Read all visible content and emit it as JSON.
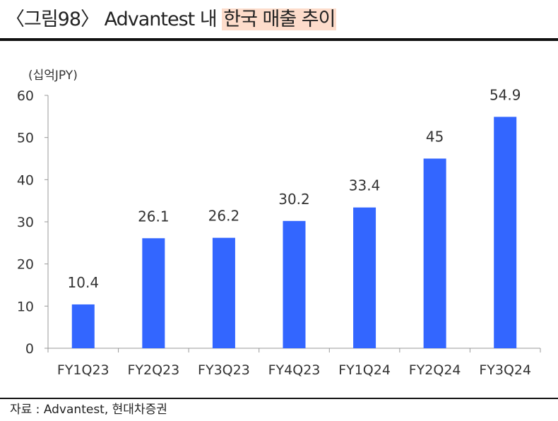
{
  "title": {
    "prefix": "〈그림98〉 Advantest 내 ",
    "highlight": "한국 매출 추이",
    "highlight_color": "#fddccb"
  },
  "source": "자료 : Advantest, 현대차증권",
  "chart_data": {
    "type": "bar",
    "title": "〈그림98〉 Advantest 내 한국 매출 추이",
    "ylabel": "(십억JPY)",
    "xlabel": "",
    "categories": [
      "FY1Q23",
      "FY2Q23",
      "FY3Q23",
      "FY4Q23",
      "FY1Q24",
      "FY2Q24",
      "FY3Q24"
    ],
    "values": [
      10.4,
      26.1,
      26.2,
      30.2,
      33.4,
      45,
      54.9
    ],
    "data_labels": [
      "10.4",
      "26.1",
      "26.2",
      "30.2",
      "33.4",
      "45",
      "54.9"
    ],
    "ylim": [
      0,
      60
    ],
    "yticks": [
      0,
      10,
      20,
      30,
      40,
      50,
      60
    ],
    "grid": false,
    "bar_color": "#3366ff"
  }
}
